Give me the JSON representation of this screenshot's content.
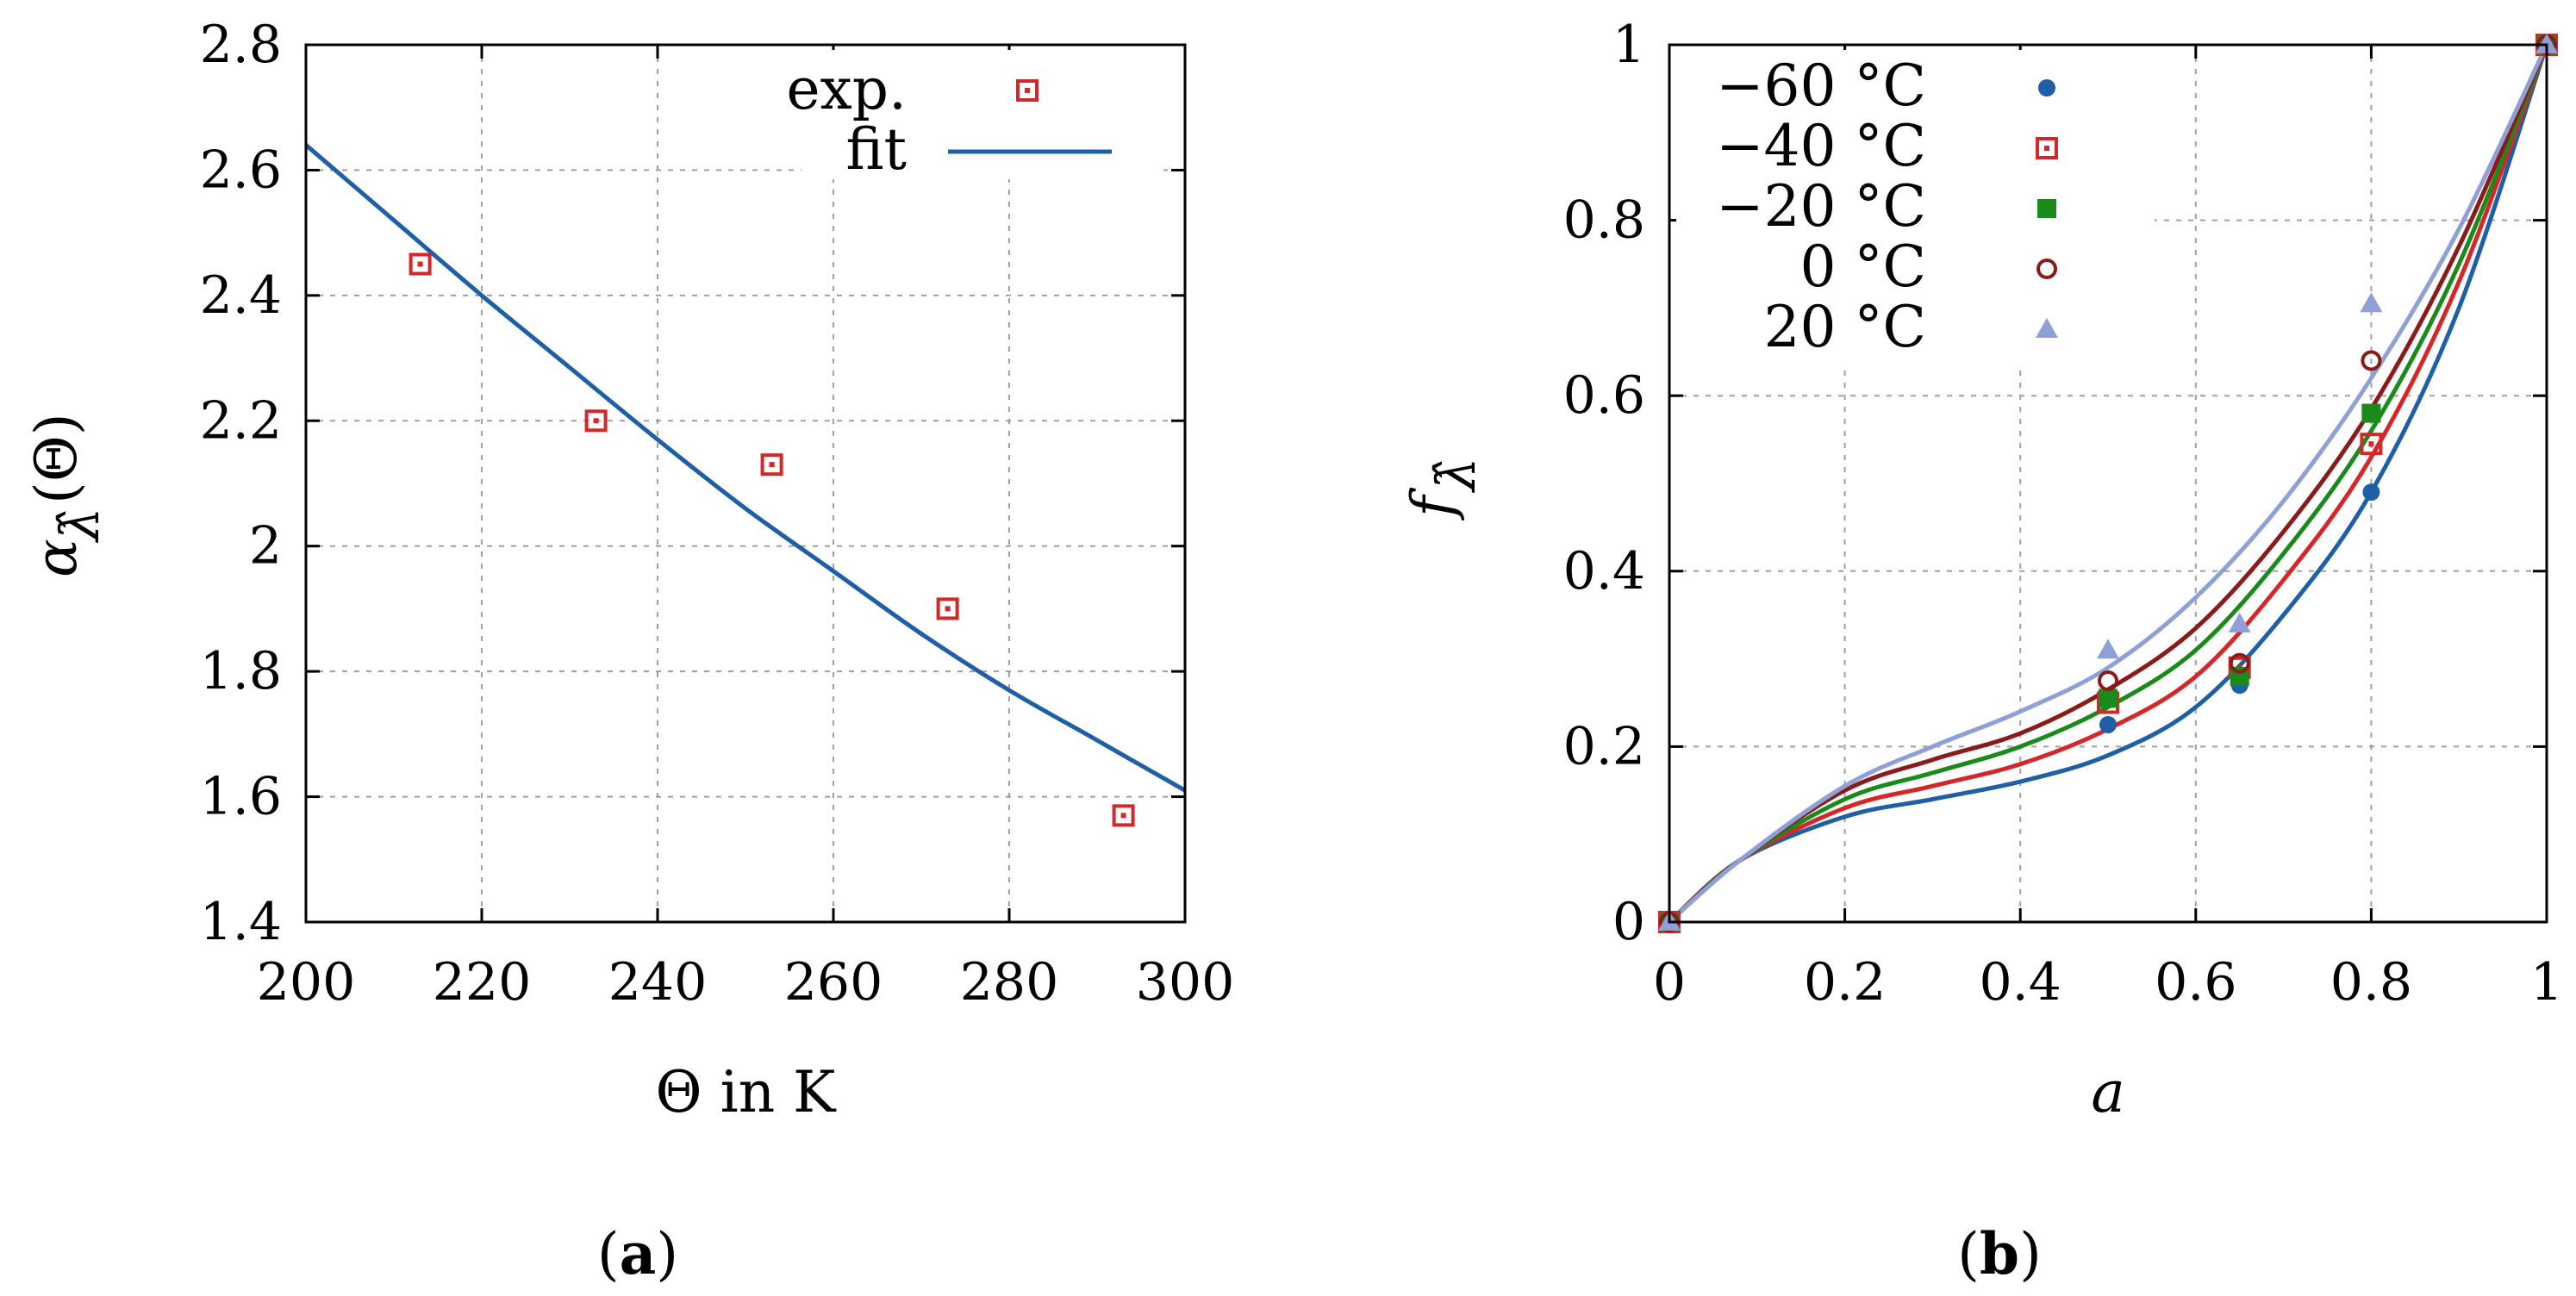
{
  "chart_data": [
    {
      "id": "a",
      "type": "scatter+line",
      "caption": "a",
      "xlabel": "Θ in K",
      "ylabel_parts": [
        "α",
        "λ̂",
        "(Θ)"
      ],
      "xlim": [
        200,
        300
      ],
      "ylim": [
        1.4,
        2.8
      ],
      "xticks": [
        200,
        220,
        240,
        260,
        280,
        300
      ],
      "yticks": [
        1.4,
        1.6,
        1.8,
        2,
        2.2,
        2.4,
        2.6,
        2.8
      ],
      "grid": true,
      "legend": {
        "position": "top-right",
        "entries": [
          "exp.",
          "fit"
        ]
      },
      "colors": {
        "exp": "#d62728",
        "fit": "#1f5fa8"
      },
      "exp_points": [
        {
          "x": 213,
          "y": 2.45
        },
        {
          "x": 233,
          "y": 2.2
        },
        {
          "x": 253,
          "y": 2.13
        },
        {
          "x": 273,
          "y": 1.9
        },
        {
          "x": 293,
          "y": 1.57
        }
      ],
      "fit_curve": [
        {
          "x": 200,
          "y": 2.64
        },
        {
          "x": 210,
          "y": 2.52
        },
        {
          "x": 220,
          "y": 2.4
        },
        {
          "x": 230,
          "y": 2.285
        },
        {
          "x": 240,
          "y": 2.17
        },
        {
          "x": 250,
          "y": 2.06
        },
        {
          "x": 260,
          "y": 1.96
        },
        {
          "x": 270,
          "y": 1.86
        },
        {
          "x": 280,
          "y": 1.77
        },
        {
          "x": 290,
          "y": 1.69
        },
        {
          "x": 300,
          "y": 1.61
        }
      ]
    },
    {
      "id": "b",
      "type": "scatter+line",
      "caption": "b",
      "xlabel": "a",
      "ylabel_parts": [
        "f",
        "λ̂"
      ],
      "xlim": [
        0,
        1
      ],
      "ylim": [
        0,
        1
      ],
      "xticks": [
        0,
        0.2,
        0.4,
        0.6,
        0.8,
        1
      ],
      "yticks": [
        0,
        0.2,
        0.4,
        0.6,
        0.8,
        1
      ],
      "grid": true,
      "legend": {
        "position": "top-left"
      },
      "series": [
        {
          "name": "−60 °C",
          "color": "#1f5fa8",
          "marker": "circle",
          "points": [
            [
              0,
              0
            ],
            [
              0.5,
              0.225
            ],
            [
              0.65,
              0.27
            ],
            [
              0.8,
              0.49
            ],
            [
              1,
              1
            ]
          ],
          "curve": [
            [
              0,
              0
            ],
            [
              0.08,
              0.07
            ],
            [
              0.2,
              0.12
            ],
            [
              0.3,
              0.14
            ],
            [
              0.4,
              0.16
            ],
            [
              0.5,
              0.19
            ],
            [
              0.6,
              0.245
            ],
            [
              0.7,
              0.35
            ],
            [
              0.8,
              0.49
            ],
            [
              0.9,
              0.7
            ],
            [
              1,
              1
            ]
          ]
        },
        {
          "name": "−40 °C",
          "color": "#d62728",
          "marker": "open-square",
          "points": [
            [
              0,
              0
            ],
            [
              0.5,
              0.25
            ],
            [
              0.65,
              0.29
            ],
            [
              0.8,
              0.545
            ],
            [
              1,
              1
            ]
          ],
          "curve": [
            [
              0,
              0
            ],
            [
              0.08,
              0.07
            ],
            [
              0.2,
              0.13
            ],
            [
              0.3,
              0.155
            ],
            [
              0.4,
              0.18
            ],
            [
              0.5,
              0.22
            ],
            [
              0.6,
              0.28
            ],
            [
              0.7,
              0.39
            ],
            [
              0.8,
              0.53
            ],
            [
              0.9,
              0.73
            ],
            [
              1,
              1
            ]
          ]
        },
        {
          "name": "−20 °C",
          "color": "#1a8a1a",
          "marker": "filled-square",
          "points": [
            [
              0,
              0
            ],
            [
              0.5,
              0.255
            ],
            [
              0.65,
              0.28
            ],
            [
              0.8,
              0.58
            ],
            [
              1,
              1
            ]
          ],
          "curve": [
            [
              0,
              0
            ],
            [
              0.08,
              0.07
            ],
            [
              0.2,
              0.14
            ],
            [
              0.3,
              0.17
            ],
            [
              0.4,
              0.2
            ],
            [
              0.5,
              0.245
            ],
            [
              0.6,
              0.31
            ],
            [
              0.7,
              0.42
            ],
            [
              0.8,
              0.56
            ],
            [
              0.9,
              0.75
            ],
            [
              1,
              1
            ]
          ]
        },
        {
          "name": "0 °C",
          "color": "#8b1a1a",
          "marker": "open-circle",
          "points": [
            [
              0,
              0
            ],
            [
              0.5,
              0.275
            ],
            [
              0.65,
              0.295
            ],
            [
              0.8,
              0.64
            ],
            [
              1,
              1
            ]
          ],
          "curve": [
            [
              0,
              0
            ],
            [
              0.08,
              0.07
            ],
            [
              0.2,
              0.15
            ],
            [
              0.3,
              0.185
            ],
            [
              0.4,
              0.215
            ],
            [
              0.5,
              0.265
            ],
            [
              0.6,
              0.335
            ],
            [
              0.7,
              0.445
            ],
            [
              0.8,
              0.585
            ],
            [
              0.9,
              0.77
            ],
            [
              1,
              1
            ]
          ]
        },
        {
          "name": "20 °C",
          "color": "#8fa0d8",
          "marker": "triangle",
          "points": [
            [
              0,
              0
            ],
            [
              0.5,
              0.31
            ],
            [
              0.65,
              0.34
            ],
            [
              0.8,
              0.705
            ],
            [
              1,
              1
            ]
          ],
          "curve": [
            [
              0,
              0
            ],
            [
              0.08,
              0.07
            ],
            [
              0.2,
              0.155
            ],
            [
              0.3,
              0.2
            ],
            [
              0.4,
              0.24
            ],
            [
              0.5,
              0.29
            ],
            [
              0.6,
              0.37
            ],
            [
              0.7,
              0.48
            ],
            [
              0.8,
              0.62
            ],
            [
              0.9,
              0.79
            ],
            [
              1,
              1
            ]
          ]
        }
      ]
    }
  ]
}
